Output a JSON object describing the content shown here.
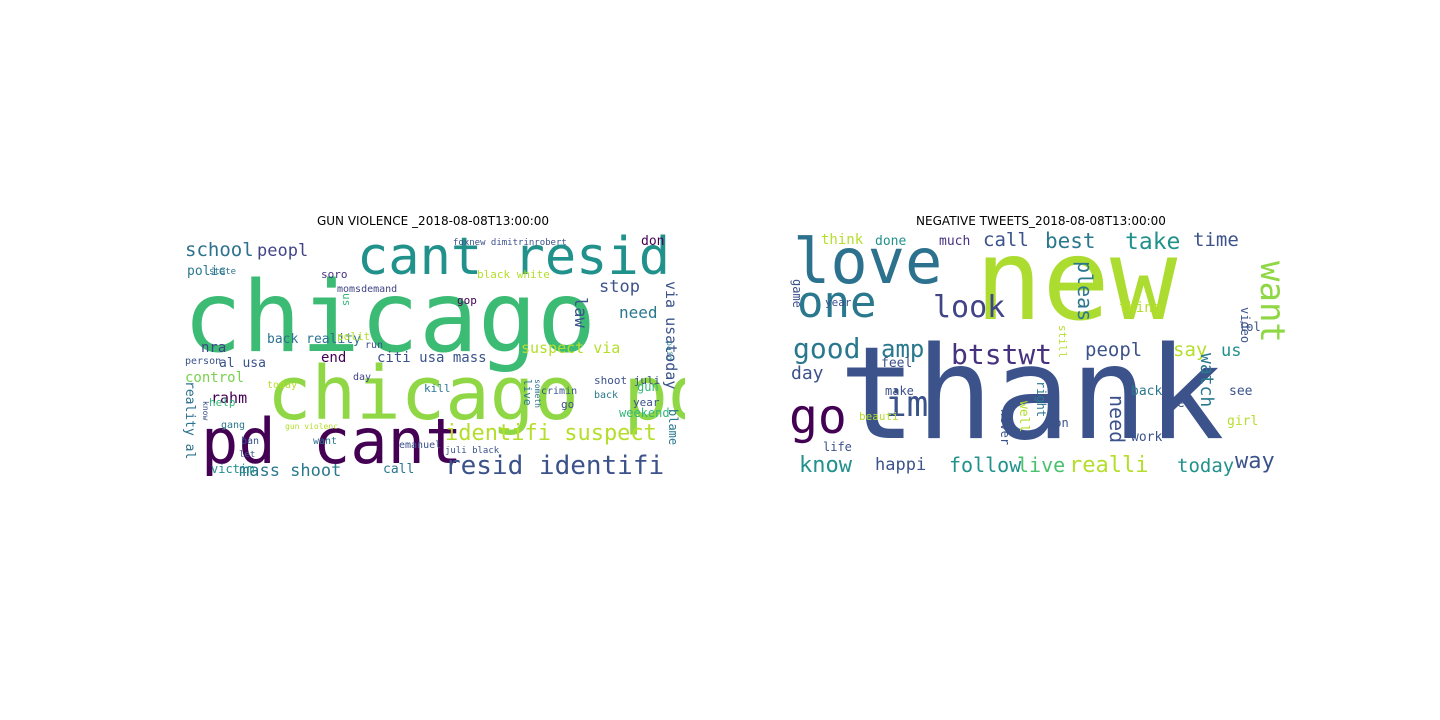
{
  "panels": [
    {
      "title": "GUN VIOLENCE _2018-08-08T13:00:00"
    },
    {
      "title": "NEGATIVE TWEETS_2018-08-08T13:00:00"
    }
  ],
  "palette": {
    "dark_purple": "#440154",
    "purple": "#46327e",
    "blue": "#365c8d",
    "teal_blue": "#277f8e",
    "teal": "#1fa187",
    "green": "#4ac16d",
    "lime": "#a0da39",
    "yellow": "#c8e020"
  },
  "cloud_gun": [
    "chicago",
    "chicago pd",
    "pd cant",
    "cant resid",
    "resid identifi",
    "identifi suspect",
    "school",
    "peopl",
    "polic",
    "stop",
    "law",
    "need",
    "via usatoday",
    "suspect via",
    "nra",
    "al usa",
    "back reality",
    "end",
    "citi usa mass",
    "control",
    "rahm",
    "kill",
    "reality al",
    "mass shoot",
    "call",
    "victim",
    "gun",
    "weekend",
    "year",
    "blame",
    "don",
    "gop",
    "black white",
    "soro",
    "help",
    "state",
    "foxnew dimitrinrobert",
    "momsdemand",
    "shoot juli",
    "live",
    "crimin",
    "go",
    "back",
    "us",
    "polit",
    "run",
    "day",
    "today",
    "ban",
    "want",
    "gang",
    "let",
    "emanuel",
    "juli black",
    "person",
    "paid",
    "gun violenc",
    "someth",
    "know"
  ],
  "cloud_neg": [
    "new",
    "thank",
    "love",
    "one",
    "look",
    "go",
    "im",
    "good",
    "amp",
    "btstwt",
    "call",
    "best",
    "take",
    "time",
    "want",
    "peopl",
    "say",
    "us",
    "day",
    "think",
    "done",
    "much",
    "pleas",
    "watch",
    "video",
    "lol",
    "know",
    "happi",
    "follow",
    "live",
    "realli",
    "today",
    "way",
    "need",
    "well",
    "right",
    "back",
    "work",
    "let",
    "girl",
    "life",
    "make",
    "feel",
    "don",
    "never",
    "beauti",
    "game",
    "year",
    "still",
    "thing",
    "see"
  ]
}
